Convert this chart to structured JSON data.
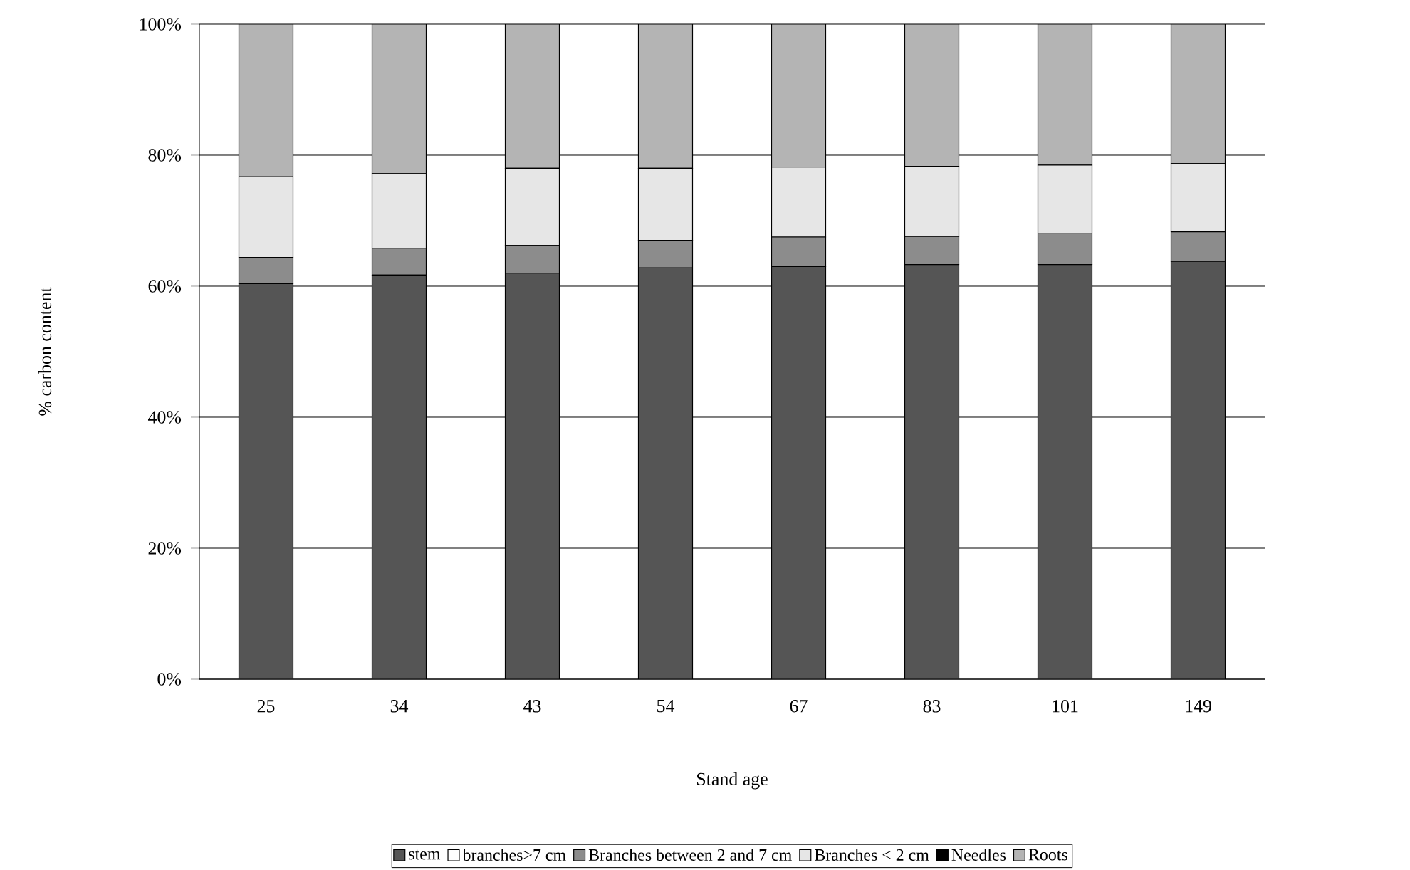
{
  "chart_data": {
    "type": "bar",
    "stacked": true,
    "xlabel": "Stand age",
    "ylabel": "% carbon content",
    "categories": [
      "25",
      "34",
      "43",
      "54",
      "67",
      "83",
      "101",
      "149"
    ],
    "series": [
      {
        "name": "stem",
        "color": "#555555",
        "values": [
          60.4,
          61.7,
          62.0,
          62.8,
          63.0,
          63.3,
          63.3,
          63.8
        ]
      },
      {
        "name": "branches>7 cm",
        "color": "#ffffff",
        "values": [
          0,
          0,
          0,
          0,
          0,
          0,
          0,
          0
        ]
      },
      {
        "name": "Branches between 2 and 7 cm",
        "color": "#8c8c8c",
        "values": [
          4.0,
          4.1,
          4.2,
          4.2,
          4.5,
          4.3,
          4.7,
          4.5
        ]
      },
      {
        "name": "Branches < 2 cm",
        "color": "#e6e6e6",
        "values": [
          12.3,
          11.4,
          11.8,
          11.0,
          10.7,
          10.7,
          10.5,
          10.4
        ]
      },
      {
        "name": "Needles",
        "color": "#000000",
        "values": [
          0,
          0,
          0,
          0,
          0,
          0,
          0,
          0
        ]
      },
      {
        "name": "Roots",
        "color": "#b4b4b4",
        "values": [
          23.3,
          22.8,
          22.0,
          22.0,
          21.8,
          21.7,
          21.5,
          21.3
        ]
      }
    ],
    "ylim": [
      0,
      100
    ],
    "yticks": [
      {
        "value": 0,
        "label": "0%"
      },
      {
        "value": 20,
        "label": "20%"
      },
      {
        "value": 40,
        "label": "40%"
      },
      {
        "value": 60,
        "label": "60%"
      },
      {
        "value": 80,
        "label": "80%"
      },
      {
        "value": 100,
        "label": "100%"
      }
    ],
    "grid": "y",
    "legend": "bottom"
  }
}
